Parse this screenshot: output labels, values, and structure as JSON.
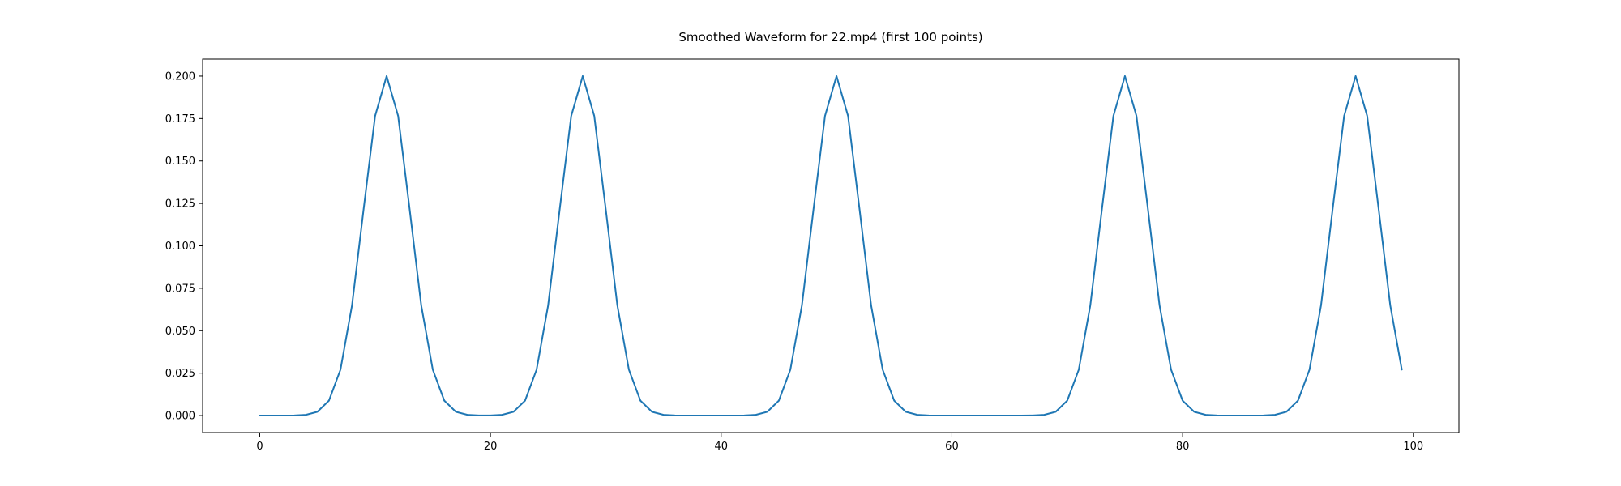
{
  "chart_data": {
    "type": "line",
    "title": "Smoothed Waveform for 22.mp4 (first 100 points)",
    "xlabel": "",
    "ylabel": "",
    "x_start": 0,
    "x_step": 1,
    "n_points": 100,
    "series": [
      {
        "name": "smoothed-waveform",
        "values": [
          0.0,
          0.0,
          1e-05,
          7e-05,
          0.00044,
          0.00222,
          0.00879,
          0.02707,
          0.06493,
          0.12131,
          0.1765,
          0.2,
          0.1765,
          0.12131,
          0.06493,
          0.02707,
          0.00879,
          0.00222,
          0.00044,
          8e-05,
          8e-05,
          0.00044,
          0.00222,
          0.00879,
          0.02707,
          0.06493,
          0.12131,
          0.1765,
          0.2,
          0.1765,
          0.12131,
          0.06493,
          0.02707,
          0.00879,
          0.00222,
          0.00044,
          7e-05,
          1e-05,
          0.0,
          0.0,
          0.0,
          1e-05,
          7e-05,
          0.00044,
          0.00222,
          0.00879,
          0.02707,
          0.06493,
          0.12131,
          0.1765,
          0.2,
          0.1765,
          0.12131,
          0.06493,
          0.02707,
          0.00879,
          0.00222,
          0.00044,
          7e-05,
          1e-05,
          0.0,
          0.0,
          0.0,
          0.0,
          0.0,
          0.0,
          1e-05,
          7e-05,
          0.00044,
          0.00222,
          0.00879,
          0.02707,
          0.06493,
          0.12131,
          0.1765,
          0.2,
          0.1765,
          0.12131,
          0.06493,
          0.02707,
          0.00879,
          0.00222,
          0.00044,
          7e-05,
          1e-05,
          0.0,
          1e-05,
          7e-05,
          0.00044,
          0.00222,
          0.00879,
          0.02707,
          0.06493,
          0.12131,
          0.1765,
          0.2,
          0.1765,
          0.12131,
          0.06493,
          0.02707
        ]
      }
    ],
    "peaks_at_x": [
      11,
      28,
      50,
      75,
      95
    ],
    "peak_value": 0.2,
    "xlim": [
      -4.95,
      103.95
    ],
    "ylim": [
      -0.01,
      0.21
    ],
    "x_ticks": [
      0,
      20,
      40,
      60,
      80,
      100
    ],
    "x_tick_labels": [
      "0",
      "20",
      "40",
      "60",
      "80",
      "100"
    ],
    "y_ticks": [
      0.0,
      0.025,
      0.05,
      0.075,
      0.1,
      0.125,
      0.15,
      0.175,
      0.2
    ],
    "y_tick_labels": [
      "0.000",
      "0.025",
      "0.050",
      "0.075",
      "0.100",
      "0.125",
      "0.150",
      "0.175",
      "0.200"
    ],
    "grid": false,
    "legend": null,
    "line_color": "#1f77b4",
    "text_color": "#000000",
    "spine_color": "#000000",
    "background": "#ffffff"
  }
}
